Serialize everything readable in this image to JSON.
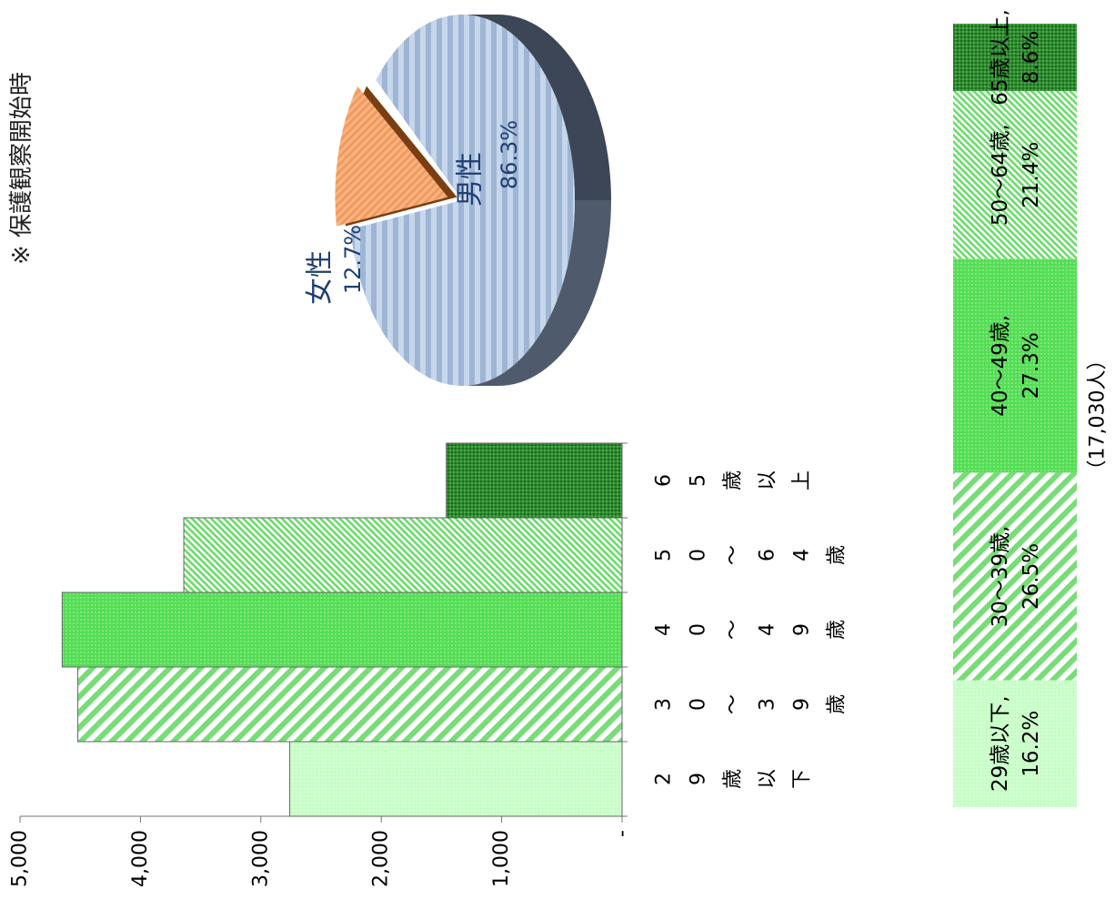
{
  "note": "※ 保護観察開始時",
  "bar_chart": {
    "yticks": [
      "-",
      "1,000",
      "2,000",
      "3,000",
      "4,000",
      "5,000"
    ],
    "categories": [
      "29歳以下",
      "30～39歳",
      "40～49歳",
      "50～64歳",
      "65歳以上"
    ],
    "category_label_chars": [
      [
        "2",
        "9",
        "歳",
        "以",
        "下"
      ],
      [
        "3",
        "0",
        "～",
        "3",
        "9",
        "歳"
      ],
      [
        "4",
        "0",
        "～",
        "4",
        "9",
        "歳"
      ],
      [
        "5",
        "0",
        "～",
        "6",
        "4",
        "歳"
      ],
      [
        "6",
        "5",
        "歳",
        "以",
        "上"
      ]
    ]
  },
  "pie_chart": {
    "labels": [
      {
        "name": "男性",
        "pct": "86.3%"
      },
      {
        "name": "女性",
        "pct": "12.7%"
      }
    ]
  },
  "stacked_bar": {
    "total_label": "（17,030人）",
    "segments": [
      {
        "line1": "29歳以下,",
        "line2": "16.2%"
      },
      {
        "line1": "30～39歳,",
        "line2": "26.5%"
      },
      {
        "line1": "40～49歳,",
        "line2": "27.3%"
      },
      {
        "line1": "50～64歳,",
        "line2": "21.4%"
      },
      {
        "line1": "65歳以上,",
        "line2": "8.6%"
      }
    ]
  },
  "chart_data": [
    {
      "type": "bar",
      "categories": [
        "29歳以下",
        "30～39歳",
        "40～49歳",
        "50～64歳",
        "65歳以上"
      ],
      "values": [
        2760,
        4520,
        4650,
        3640,
        1460
      ],
      "ylim": [
        0,
        5000
      ],
      "colors": [
        "#ccffcc",
        "#66dd66",
        "#55dd55",
        "#66dd66",
        "#339933"
      ]
    },
    {
      "type": "pie",
      "categories": [
        "男性",
        "女性"
      ],
      "values": [
        86.3,
        12.7
      ],
      "colors": [
        "#b8cce4",
        "#f4a460"
      ]
    },
    {
      "type": "bar",
      "stacked": true,
      "categories": [
        "29歳以下",
        "30～39歳",
        "40～49歳",
        "50～64歳",
        "65歳以上"
      ],
      "values": [
        16.2,
        26.5,
        27.3,
        21.4,
        8.6
      ],
      "total": 17030,
      "colors": [
        "#ccffcc",
        "#66dd66",
        "#44cc44",
        "#66dd66",
        "#339933"
      ]
    }
  ]
}
